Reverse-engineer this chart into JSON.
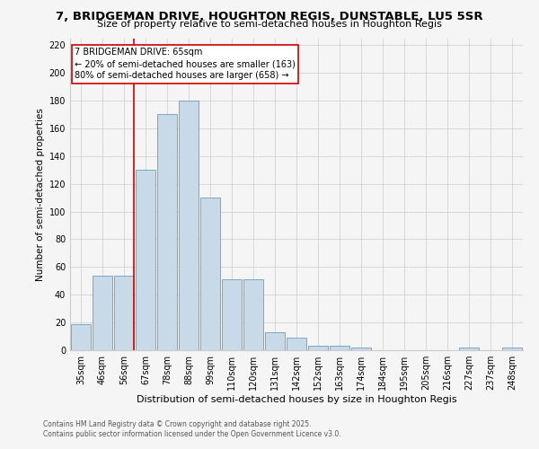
{
  "title": "7, BRIDGEMAN DRIVE, HOUGHTON REGIS, DUNSTABLE, LU5 5SR",
  "subtitle": "Size of property relative to semi-detached houses in Houghton Regis",
  "xlabel": "Distribution of semi-detached houses by size in Houghton Regis",
  "ylabel": "Number of semi-detached properties",
  "footnote1": "Contains HM Land Registry data © Crown copyright and database right 2025.",
  "footnote2": "Contains public sector information licensed under the Open Government Licence v3.0.",
  "categories": [
    "35sqm",
    "46sqm",
    "56sqm",
    "67sqm",
    "78sqm",
    "88sqm",
    "99sqm",
    "110sqm",
    "120sqm",
    "131sqm",
    "142sqm",
    "152sqm",
    "163sqm",
    "174sqm",
    "184sqm",
    "195sqm",
    "205sqm",
    "216sqm",
    "227sqm",
    "237sqm",
    "248sqm"
  ],
  "values": [
    19,
    54,
    54,
    130,
    170,
    180,
    110,
    51,
    51,
    13,
    9,
    3,
    3,
    2,
    0,
    0,
    0,
    0,
    2,
    0,
    2
  ],
  "bar_color": "#c8d9e8",
  "bar_edge_color": "#6a9ec0",
  "vline_color": "#cc0000",
  "annotation_text": "7 BRIDGEMAN DRIVE: 65sqm\n← 20% of semi-detached houses are smaller (163)\n80% of semi-detached houses are larger (658) →",
  "annotation_box_color": "#ffffff",
  "annotation_box_edge": "#cc0000",
  "ylim": [
    0,
    225
  ],
  "yticks": [
    0,
    20,
    40,
    60,
    80,
    100,
    120,
    140,
    160,
    180,
    200,
    220
  ],
  "background_color": "#f5f5f5",
  "grid_color": "#cccccc",
  "title_fontsize": 9.5,
  "subtitle_fontsize": 8,
  "tick_fontsize": 7,
  "ylabel_fontsize": 7.5,
  "xlabel_fontsize": 8,
  "footnote_fontsize": 5.5,
  "annotation_fontsize": 7
}
